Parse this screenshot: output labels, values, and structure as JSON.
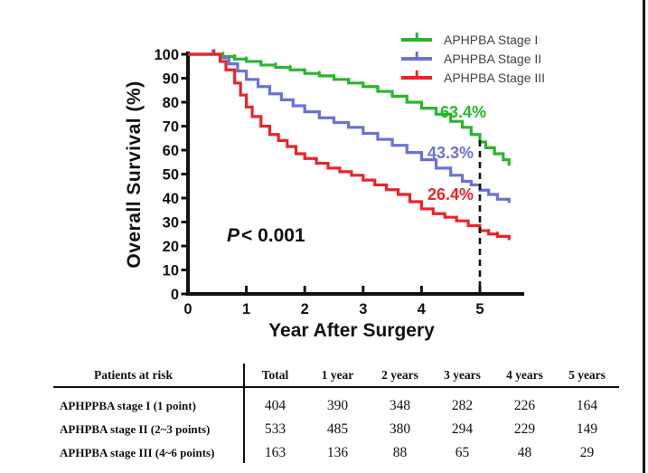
{
  "chart_data": {
    "type": "line",
    "subtype": "kaplan-meier-step",
    "title": "",
    "xlabel": "Year After Surgery",
    "ylabel": "Overall Survival (%)",
    "xlim": [
      0,
      5.65
    ],
    "ylim": [
      0,
      100
    ],
    "x_ticks": [
      0,
      1,
      2,
      3,
      4,
      5
    ],
    "y_ticks": [
      0,
      10,
      20,
      30,
      40,
      50,
      60,
      70,
      80,
      90,
      100
    ],
    "grid": false,
    "legend_position": "top-right",
    "censor_line_x": 5,
    "series": [
      {
        "name": "APHPBA Stage I",
        "color": "#28b62c",
        "end_label": "63.4%",
        "points": [
          [
            0,
            100
          ],
          [
            0.45,
            100
          ],
          [
            0.6,
            99
          ],
          [
            0.8,
            98
          ],
          [
            1,
            97
          ],
          [
            1.25,
            95.5
          ],
          [
            1.5,
            94.5
          ],
          [
            1.75,
            93.5
          ],
          [
            2,
            92
          ],
          [
            2.25,
            91
          ],
          [
            2.5,
            89.5
          ],
          [
            2.75,
            88
          ],
          [
            3,
            86.5
          ],
          [
            3.25,
            84.5
          ],
          [
            3.5,
            82.5
          ],
          [
            3.75,
            80
          ],
          [
            4,
            77.5
          ],
          [
            4.25,
            75
          ],
          [
            4.5,
            72
          ],
          [
            4.7,
            69.5
          ],
          [
            4.85,
            66.5
          ],
          [
            5,
            63.4
          ],
          [
            5.1,
            61
          ],
          [
            5.25,
            58.5
          ],
          [
            5.4,
            56
          ],
          [
            5.5,
            53.5
          ]
        ]
      },
      {
        "name": "APHPBA Stage II",
        "color": "#6b70dc",
        "end_label": "43.3%",
        "points": [
          [
            0,
            100
          ],
          [
            0.42,
            100
          ],
          [
            0.55,
            98.5
          ],
          [
            0.7,
            96
          ],
          [
            0.85,
            93
          ],
          [
            1,
            89.5
          ],
          [
            1.2,
            86.5
          ],
          [
            1.4,
            83.5
          ],
          [
            1.6,
            81
          ],
          [
            1.8,
            78.5
          ],
          [
            2,
            76
          ],
          [
            2.25,
            73.5
          ],
          [
            2.5,
            71.5
          ],
          [
            2.75,
            69.5
          ],
          [
            3,
            67
          ],
          [
            3.25,
            64.5
          ],
          [
            3.5,
            62
          ],
          [
            3.75,
            59
          ],
          [
            4,
            56
          ],
          [
            4.25,
            52.5
          ],
          [
            4.5,
            49.5
          ],
          [
            4.7,
            47
          ],
          [
            4.85,
            45.5
          ],
          [
            5,
            43.3
          ],
          [
            5.15,
            41.5
          ],
          [
            5.3,
            39.5
          ],
          [
            5.5,
            38
          ]
        ]
      },
      {
        "name": "APHPBA Stage III",
        "color": "#e92528",
        "end_label": "26.4%",
        "points": [
          [
            0,
            100
          ],
          [
            0.45,
            100
          ],
          [
            0.55,
            97
          ],
          [
            0.65,
            93.5
          ],
          [
            0.8,
            88
          ],
          [
            0.9,
            83
          ],
          [
            1,
            78
          ],
          [
            1.1,
            74
          ],
          [
            1.25,
            70
          ],
          [
            1.4,
            66.5
          ],
          [
            1.55,
            64
          ],
          [
            1.7,
            61.5
          ],
          [
            1.85,
            58.5
          ],
          [
            2,
            56.5
          ],
          [
            2.2,
            54.5
          ],
          [
            2.4,
            52.5
          ],
          [
            2.6,
            51
          ],
          [
            2.8,
            49.5
          ],
          [
            3,
            47.5
          ],
          [
            3.2,
            45.5
          ],
          [
            3.4,
            43.5
          ],
          [
            3.6,
            41.5
          ],
          [
            3.8,
            38.5
          ],
          [
            4,
            35.5
          ],
          [
            4.2,
            33.5
          ],
          [
            4.4,
            32
          ],
          [
            4.6,
            30.5
          ],
          [
            4.8,
            28.5
          ],
          [
            5,
            26.4
          ],
          [
            5.15,
            25
          ],
          [
            5.3,
            24
          ],
          [
            5.5,
            22.5
          ]
        ]
      }
    ]
  },
  "figure": {
    "p_value_prefix": "P",
    "p_value_rest": "< 0.001"
  },
  "risk_table": {
    "corner_header": "Patients at risk",
    "columns": [
      "Total",
      "1 year",
      "2 years",
      "3 years",
      "4 years",
      "5 years"
    ],
    "rows": [
      {
        "label": "APHPPBA stage I (1 point)",
        "values": [
          404,
          390,
          348,
          282,
          226,
          164
        ]
      },
      {
        "label": "APHPBA stage II (2~3 points)",
        "values": [
          533,
          485,
          380,
          294,
          229,
          149
        ]
      },
      {
        "label": "APHPBA stage III (4~6 points)",
        "values": [
          163,
          136,
          88,
          65,
          48,
          29
        ]
      }
    ]
  },
  "colors": {
    "axis": "#111111",
    "frame_border": "#15151f",
    "legend_text": "#444444"
  }
}
